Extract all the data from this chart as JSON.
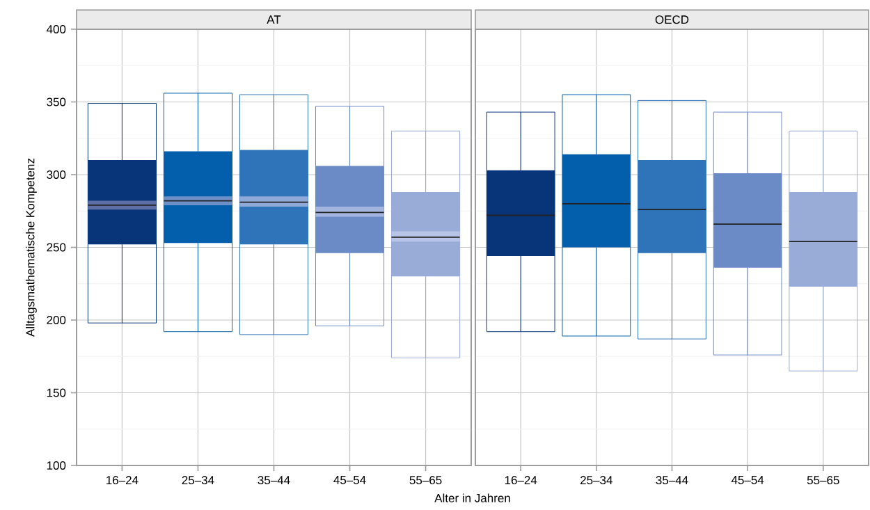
{
  "chart_data": [
    {
      "type": "box",
      "title": "AT",
      "xlabel": "Alter in Jahren",
      "ylabel": "Alltagsmathematische Kompetenz",
      "categories": [
        "16–24",
        "25–34",
        "35–44",
        "45–54",
        "55–65"
      ],
      "ylim": [
        100,
        400
      ],
      "yticks": [
        100,
        150,
        200,
        250,
        300,
        350,
        400
      ],
      "grid": true,
      "series": [
        {
          "type": "box",
          "colors": [
            "#08357a",
            "#035fab",
            "#2f74b9",
            "#6b8bc7",
            "#99acd7"
          ],
          "boxes": [
            {
              "low": 198,
              "q1": 252,
              "median": 279,
              "q3": 310,
              "high": 349
            },
            {
              "low": 192,
              "q1": 253,
              "median": 282,
              "q3": 316,
              "high": 356
            },
            {
              "low": 190,
              "q1": 252,
              "median": 281,
              "q3": 317,
              "high": 355
            },
            {
              "low": 196,
              "q1": 246,
              "median": 274,
              "q3": 306,
              "high": 347
            },
            {
              "low": 174,
              "q1": 230,
              "median": 257,
              "q3": 288,
              "high": 330
            }
          ]
        },
        {
          "type": "bar",
          "colors": [
            "#5e6fa8",
            "#6f8fc8",
            "#8fa9d9",
            "#a3b5df",
            "#b8c5e8"
          ],
          "base": [
            276,
            279,
            278,
            271,
            254
          ],
          "values": [
            6,
            6,
            7,
            7,
            7
          ]
        }
      ]
    },
    {
      "type": "box",
      "title": "OECD",
      "categories": [
        "16–24",
        "25–34",
        "35–44",
        "45–54",
        "55–65"
      ],
      "ylim": [
        100,
        400
      ],
      "yticks": [
        100,
        150,
        200,
        250,
        300,
        350,
        400
      ],
      "grid": true,
      "tick_labels": "x",
      "series": [
        {
          "type": "box",
          "colors": [
            "#08357a",
            "#035fab",
            "#2f74b9",
            "#6b8bc7",
            "#99acd7"
          ],
          "boxes": [
            {
              "low": 192,
              "q1": 244,
              "median": 272,
              "q3": 303,
              "high": 343
            },
            {
              "low": 189,
              "q1": 250,
              "median": 280,
              "q3": 314,
              "high": 355
            },
            {
              "low": 187,
              "q1": 246,
              "median": 276,
              "q3": 310,
              "high": 351
            },
            {
              "low": 176,
              "q1": 236,
              "median": 266,
              "q3": 301,
              "high": 343
            },
            {
              "low": 165,
              "q1": 223,
              "median": 254,
              "q3": 288,
              "high": 330
            }
          ]
        }
      ]
    }
  ]
}
